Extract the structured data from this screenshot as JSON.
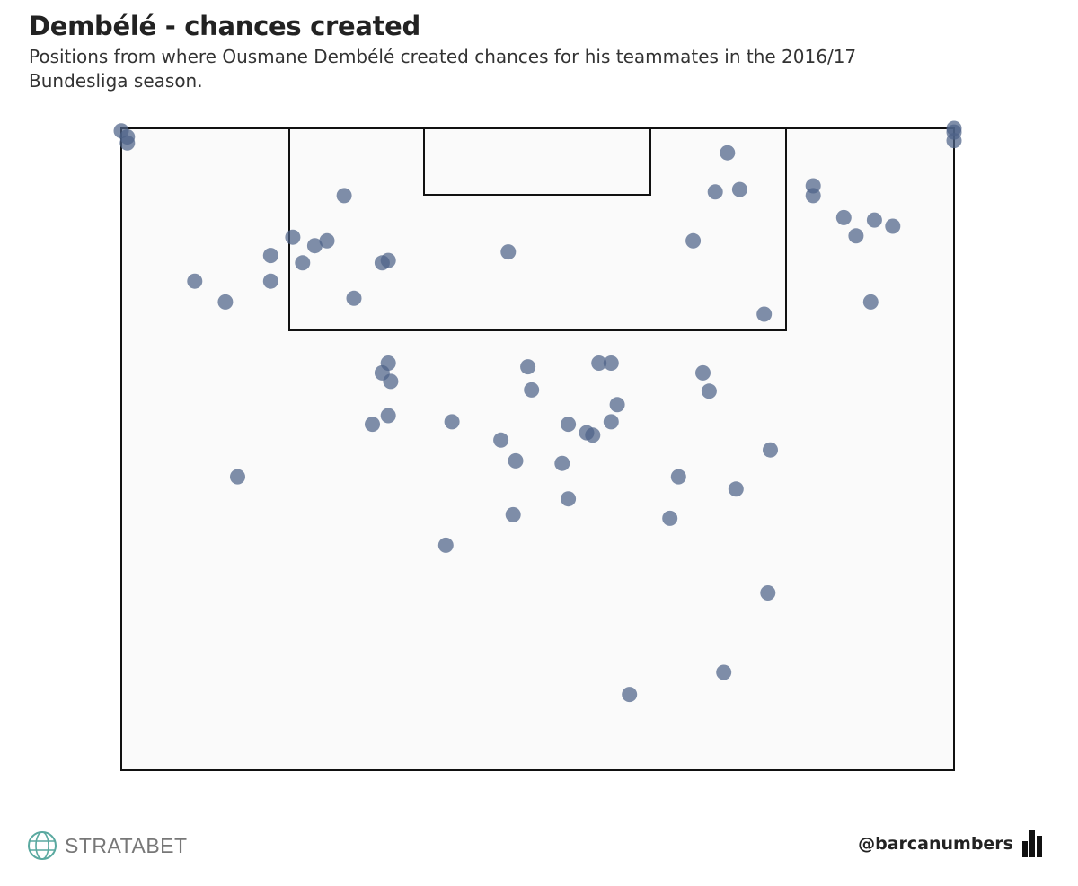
{
  "header": {
    "title": "Dembélé - chances created",
    "subtitle": "Positions from where Ousmane Dembélé created chances for his teammates in the 2016/17 Bundesliga season."
  },
  "footer": {
    "brand": "STRATABET",
    "brand_icon": "globe-icon",
    "handle": "@barcanumbers",
    "handle_icon": "bar-chart-icon"
  },
  "colors": {
    "point": "#4e6388",
    "pitch_fill": "#fafafa",
    "pitch_line": "#111111",
    "brand_icon": "#5aa9a0"
  },
  "chart_data": {
    "type": "scatter",
    "title": "Dembélé - chances created",
    "subtitle": "Positions from where Ousmane Dembélé created chances for his teammates in the 2016/17 Bundesliga season.",
    "xlabel": "",
    "ylabel": "",
    "xlim": [
      0,
      68
    ],
    "ylim": [
      0,
      52.5
    ],
    "grid": false,
    "legend": "none",
    "points": [
      {
        "x": 0.0,
        "y": 0.2
      },
      {
        "x": 0.5,
        "y": 0.7
      },
      {
        "x": 0.5,
        "y": 1.2
      },
      {
        "x": 68.0,
        "y": 0.0
      },
      {
        "x": 68.0,
        "y": 0.3
      },
      {
        "x": 68.0,
        "y": 1.0
      },
      {
        "x": 18.2,
        "y": 5.5
      },
      {
        "x": 14.0,
        "y": 8.9
      },
      {
        "x": 15.8,
        "y": 9.6
      },
      {
        "x": 16.8,
        "y": 9.2
      },
      {
        "x": 12.2,
        "y": 10.4
      },
      {
        "x": 14.8,
        "y": 11.0
      },
      {
        "x": 21.8,
        "y": 10.8
      },
      {
        "x": 21.3,
        "y": 11.0
      },
      {
        "x": 6.0,
        "y": 12.5
      },
      {
        "x": 12.2,
        "y": 12.5
      },
      {
        "x": 8.5,
        "y": 14.2
      },
      {
        "x": 19.0,
        "y": 13.9
      },
      {
        "x": 31.6,
        "y": 10.1
      },
      {
        "x": 49.5,
        "y": 2.0
      },
      {
        "x": 48.5,
        "y": 5.2
      },
      {
        "x": 50.5,
        "y": 5.0
      },
      {
        "x": 46.7,
        "y": 9.2
      },
      {
        "x": 52.5,
        "y": 15.2
      },
      {
        "x": 56.5,
        "y": 4.7
      },
      {
        "x": 56.5,
        "y": 5.5
      },
      {
        "x": 59.0,
        "y": 7.3
      },
      {
        "x": 60.0,
        "y": 8.8
      },
      {
        "x": 61.5,
        "y": 7.5
      },
      {
        "x": 63.0,
        "y": 8.0
      },
      {
        "x": 61.2,
        "y": 14.2
      },
      {
        "x": 21.8,
        "y": 19.2
      },
      {
        "x": 21.3,
        "y": 20.0
      },
      {
        "x": 22.0,
        "y": 20.7
      },
      {
        "x": 21.8,
        "y": 23.5
      },
      {
        "x": 20.5,
        "y": 24.2
      },
      {
        "x": 33.2,
        "y": 19.5
      },
      {
        "x": 33.5,
        "y": 21.4
      },
      {
        "x": 39.0,
        "y": 19.2
      },
      {
        "x": 40.0,
        "y": 19.2
      },
      {
        "x": 40.5,
        "y": 22.6
      },
      {
        "x": 47.5,
        "y": 20.0
      },
      {
        "x": 48.0,
        "y": 21.5
      },
      {
        "x": 27.0,
        "y": 24.0
      },
      {
        "x": 31.0,
        "y": 25.5
      },
      {
        "x": 36.5,
        "y": 24.2
      },
      {
        "x": 38.0,
        "y": 24.9
      },
      {
        "x": 38.5,
        "y": 25.1
      },
      {
        "x": 40.0,
        "y": 24.0
      },
      {
        "x": 32.2,
        "y": 27.2
      },
      {
        "x": 36.0,
        "y": 27.4
      },
      {
        "x": 53.0,
        "y": 26.3
      },
      {
        "x": 9.5,
        "y": 28.5
      },
      {
        "x": 45.5,
        "y": 28.5
      },
      {
        "x": 50.2,
        "y": 29.5
      },
      {
        "x": 36.5,
        "y": 30.3
      },
      {
        "x": 32.0,
        "y": 31.6
      },
      {
        "x": 44.8,
        "y": 31.9
      },
      {
        "x": 26.5,
        "y": 34.1
      },
      {
        "x": 52.8,
        "y": 38.0
      },
      {
        "x": 49.2,
        "y": 44.5
      },
      {
        "x": 41.5,
        "y": 46.3
      }
    ]
  }
}
